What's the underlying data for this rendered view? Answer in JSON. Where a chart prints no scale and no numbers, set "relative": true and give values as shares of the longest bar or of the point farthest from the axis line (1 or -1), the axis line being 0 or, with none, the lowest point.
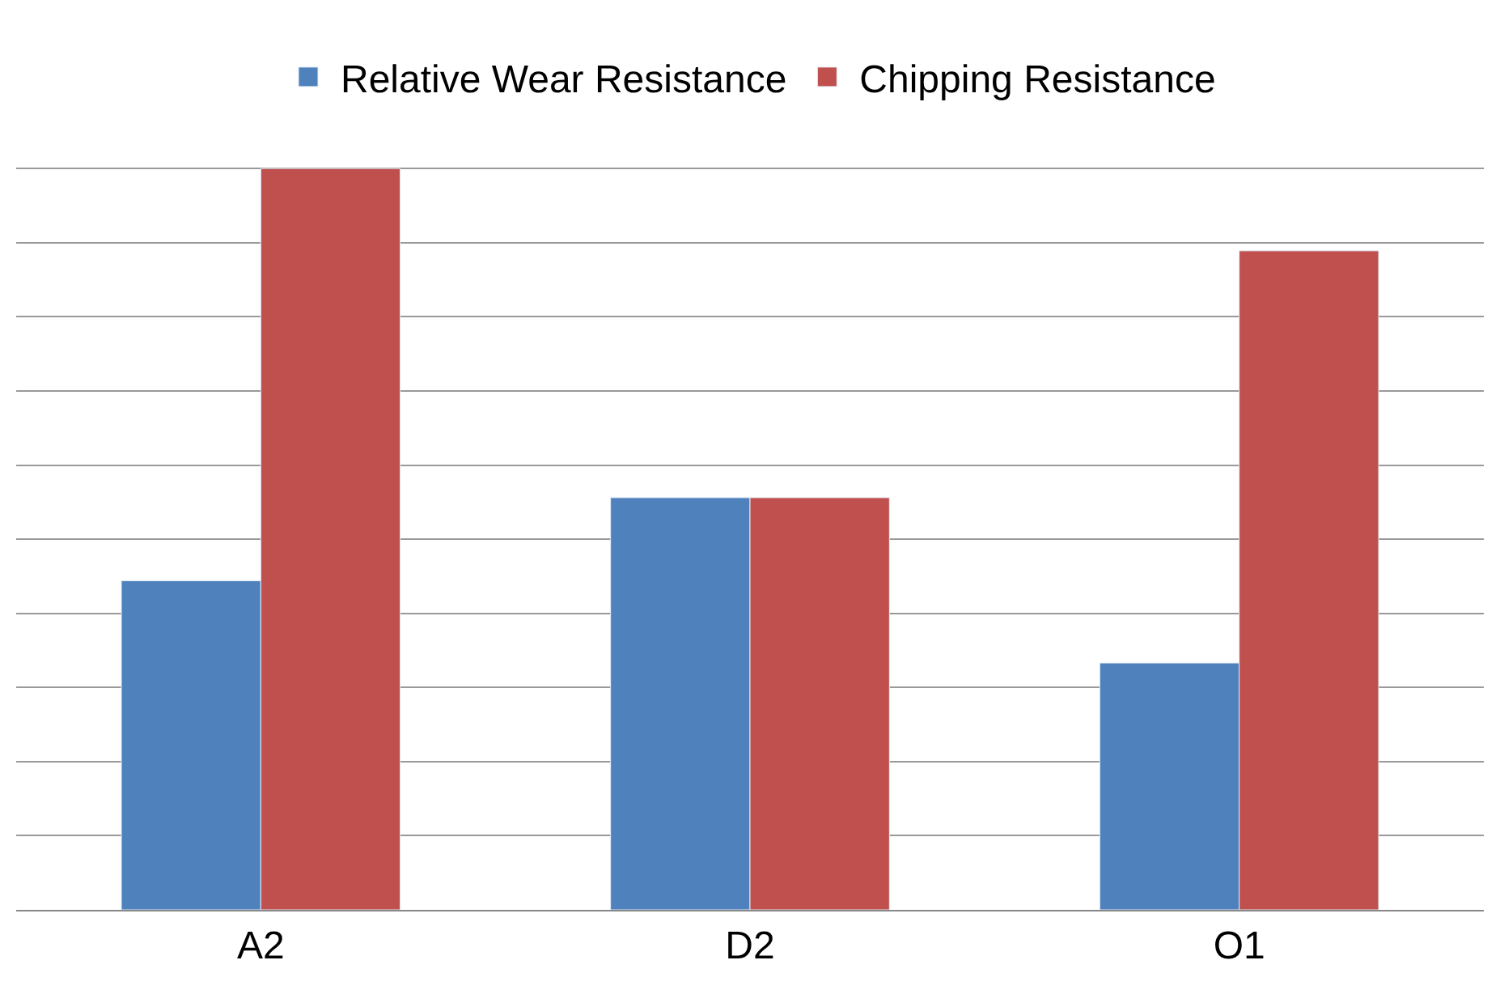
{
  "chart_data": {
    "type": "bar",
    "relative": true,
    "categories": [
      "A2",
      "D2",
      "O1"
    ],
    "series": [
      {
        "name": "Relative Wear Resistance",
        "color": "#4f81bd",
        "values": [
          0.444,
          0.556,
          0.333
        ]
      },
      {
        "name": "Chipping Resistance",
        "color": "#c0504d",
        "values": [
          1,
          0.556,
          0.889
        ]
      }
    ],
    "grid": "y",
    "legend": "top"
  }
}
